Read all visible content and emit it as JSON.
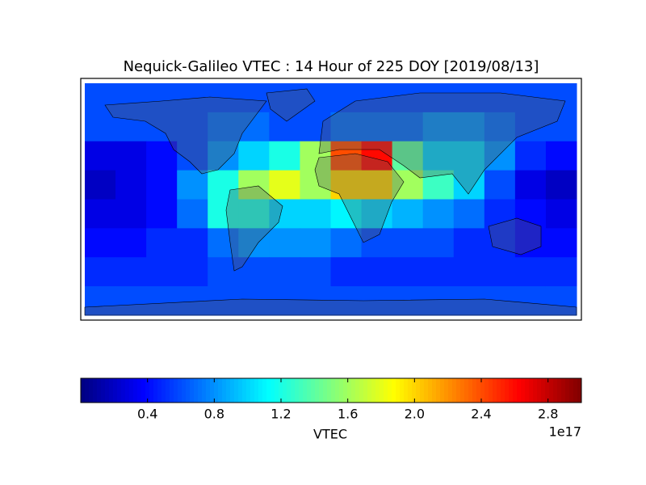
{
  "chart_data": {
    "type": "heatmap",
    "title": "Nequick-Galileo VTEC : 14 Hour of 225 DOY [2019/08/13]",
    "colormap": "jet",
    "values": [
      [
        0.6,
        0.6,
        0.6,
        0.6,
        0.6,
        0.6,
        0.6,
        0.6,
        0.6,
        0.6,
        0.6,
        0.6,
        0.6,
        0.6,
        0.6,
        0.6
      ],
      [
        0.6,
        0.6,
        0.6,
        0.6,
        0.7,
        0.7,
        0.6,
        0.6,
        0.7,
        0.7,
        0.7,
        0.8,
        0.8,
        0.7,
        0.6,
        0.6
      ],
      [
        0.3,
        0.3,
        0.4,
        0.6,
        0.8,
        1.0,
        1.2,
        1.6,
        2.4,
        2.6,
        1.4,
        1.0,
        1.0,
        0.8,
        0.5,
        0.4
      ],
      [
        0.2,
        0.3,
        0.4,
        0.8,
        1.2,
        1.6,
        1.8,
        1.6,
        2.0,
        2.0,
        1.6,
        1.3,
        1.0,
        0.6,
        0.3,
        0.2
      ],
      [
        0.3,
        0.3,
        0.4,
        0.7,
        1.2,
        1.2,
        1.0,
        1.0,
        1.1,
        1.0,
        0.9,
        0.8,
        0.7,
        0.5,
        0.4,
        0.3
      ],
      [
        0.4,
        0.4,
        0.5,
        0.5,
        0.7,
        0.8,
        0.8,
        0.8,
        0.7,
        0.6,
        0.6,
        0.6,
        0.5,
        0.5,
        0.4,
        0.4
      ],
      [
        0.5,
        0.5,
        0.5,
        0.5,
        0.6,
        0.6,
        0.6,
        0.6,
        0.5,
        0.5,
        0.5,
        0.5,
        0.5,
        0.5,
        0.5,
        0.5
      ],
      [
        0.6,
        0.6,
        0.6,
        0.6,
        0.6,
        0.6,
        0.6,
        0.6,
        0.6,
        0.6,
        0.6,
        0.6,
        0.6,
        0.6,
        0.6,
        0.6
      ]
    ],
    "colorbar": {
      "label": "VTEC",
      "offset_label": "1e17",
      "lim": [
        0,
        3
      ],
      "ticks": [
        0.4,
        0.8,
        1.2,
        1.6,
        {
          "value": 2,
          "label": "2.0"
        },
        2.4,
        2.8
      ]
    }
  }
}
